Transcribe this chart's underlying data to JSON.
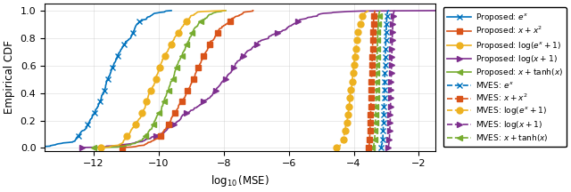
{
  "xlabel": "$\\log_{10}(\\mathrm{MSE})$",
  "ylabel": "Empirical CDF",
  "xlim": [
    -13.5,
    -1.5
  ],
  "ylim": [
    -0.02,
    1.05
  ],
  "xticks": [
    -12,
    -10,
    -8,
    -6,
    -4,
    -2
  ],
  "yticks": [
    0.0,
    0.2,
    0.4,
    0.6,
    0.8,
    1.0
  ],
  "colors": {
    "exp_x": "#0072BD",
    "x_plus_x2": "#D95319",
    "log_exp_plus1": "#EDB120",
    "log_x_plus1": "#7E2F8E",
    "x_tanh_x": "#77AC30"
  },
  "markers": {
    "exp_x": "x",
    "x_plus_x2": "s",
    "log_exp_plus1": "o",
    "log_x_plus1": ">",
    "x_tanh_x": "<"
  },
  "proposed_params": {
    "exp_x": {
      "mean": -11.5,
      "std": 0.7
    },
    "log_exp_plus1": {
      "mean": -10.1,
      "std": 0.6
    },
    "x_tanh_x": {
      "mean": -9.6,
      "std": 0.65
    },
    "x_plus_x2": {
      "mean": -8.9,
      "std": 0.8
    },
    "log_x_plus1": {
      "mean": -8.0,
      "std": 1.5
    }
  },
  "mves_params": {
    "log_exp_plus1": {
      "mean": -4.05,
      "std": 0.18
    },
    "x_plus_x2": {
      "mean": -3.45,
      "std": 0.04
    },
    "x_tanh_x": {
      "mean": -3.3,
      "std": 0.04
    },
    "exp_x": {
      "mean": -3.05,
      "std": 0.04
    },
    "log_x_plus1": {
      "mean": -2.85,
      "std": 0.04
    }
  },
  "labels_proposed": {
    "exp_x": "Proposed: $e^x$",
    "x_plus_x2": "Proposed: $x + x^2$",
    "log_exp_plus1": "Proposed: $\\log(e^x+1)$",
    "log_x_plus1": "Proposed: $\\log(x+1)$",
    "x_tanh_x": "Proposed: $x + \\tanh(x)$"
  },
  "labels_mves": {
    "exp_x": "MVES: $e^x$",
    "x_plus_x2": "MVES: $x + x^2$",
    "log_exp_plus1": "MVES: $\\log(e^x+1)$",
    "log_x_plus1": "MVES: $\\log(x+1)$",
    "x_tanh_x": "MVES: $x + \\tanh(x)$"
  },
  "N": 300
}
